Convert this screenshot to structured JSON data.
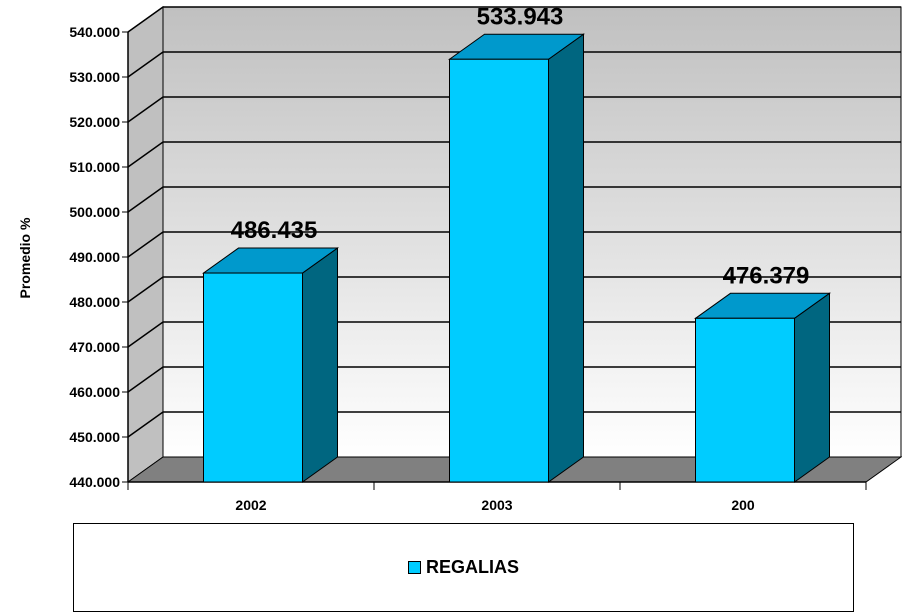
{
  "chart_data": {
    "type": "bar",
    "categories": [
      "2002",
      "2003",
      "200"
    ],
    "series": [
      {
        "name": "REGALIAS",
        "values": [
          486.435,
          533.943,
          476.379
        ]
      }
    ],
    "data_labels": [
      "486.435",
      "533.943",
      "476.379"
    ],
    "y_ticks": [
      "440.000",
      "450.000",
      "460.000",
      "470.000",
      "480.000",
      "490.000",
      "500.000",
      "510.000",
      "520.000",
      "530.000",
      "540.000"
    ],
    "ylabel": "Promedio %",
    "xlabel": "",
    "ylim": [
      440,
      540
    ],
    "grid": true,
    "legend_position": "bottom",
    "three_d": true,
    "colors": {
      "bar_front": "#00ccff",
      "bar_top": "#0099cc",
      "bar_side": "#006680",
      "back_wall": "#c0c0c0",
      "floor": "#808080"
    }
  }
}
